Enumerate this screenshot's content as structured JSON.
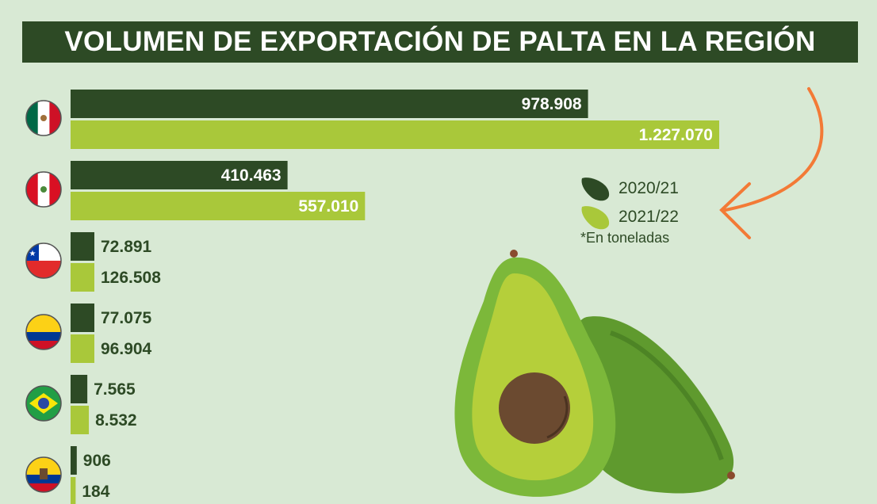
{
  "chart_data": {
    "type": "bar",
    "orientation": "horizontal",
    "title": "VOLUMEN DE EXPORTACIÓN DE PALTA EN LA REGIÓN",
    "categories": [
      "México",
      "Perú",
      "Chile",
      "Colombia",
      "Brasil",
      "Ecuador"
    ],
    "flag_icons": [
      "mexico-flag-icon",
      "peru-flag-icon",
      "chile-flag-icon",
      "colombia-flag-icon",
      "brazil-flag-icon",
      "ecuador-flag-icon"
    ],
    "series": [
      {
        "name": "2020/21",
        "color": "#2d4a25",
        "values": [
          978908,
          410463,
          72891,
          77075,
          7565,
          906
        ],
        "labels": [
          "978.908",
          "410.463",
          "72.891",
          "77.075",
          "7.565",
          "906"
        ]
      },
      {
        "name": "2021/22",
        "color": "#a9c83a",
        "values": [
          1227070,
          557010,
          126508,
          96904,
          8532,
          184
        ],
        "labels": [
          "1.227.070",
          "557.010",
          "126.508",
          "96.904",
          "8.532",
          "184"
        ]
      }
    ],
    "unit_note": "*En toneladas",
    "legend_placement": "right",
    "grid": false
  }
}
